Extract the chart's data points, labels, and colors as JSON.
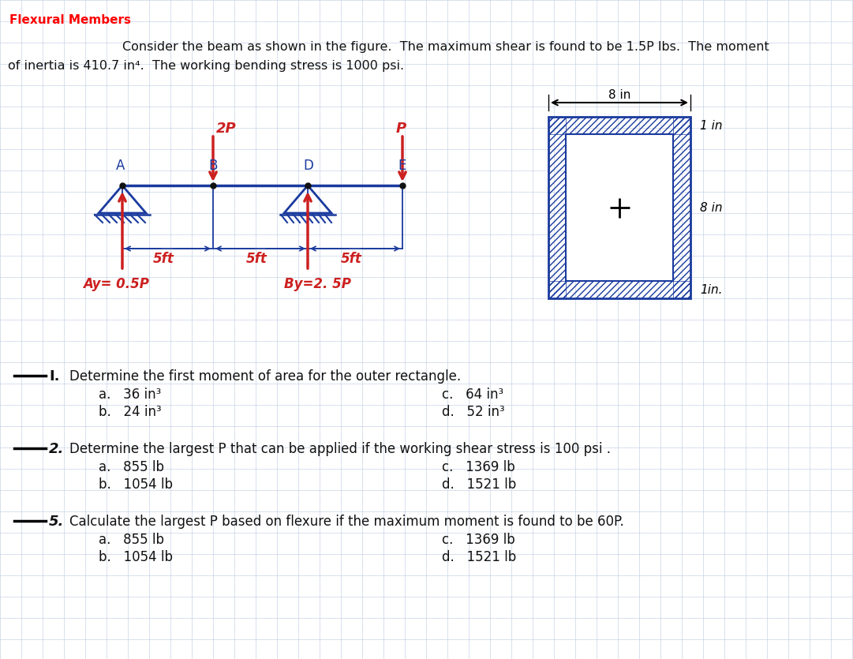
{
  "title": "Flexural Members",
  "title_color": "#ff0000",
  "bg_color": "#ffffff",
  "desc_line1": "Consider the beam as shown in the figure.  The maximum shear is found to be 1.5P lbs.  The moment",
  "desc_line2": "of inertia is 410.7 in⁴.  The working bending stress is 1000 psi.",
  "q1_text": "Determine the first moment of area for the outer rectangle.",
  "q1_a": "a.   36 in³",
  "q1_b": "b.   24 in³",
  "q1_c": "c.   64 in³",
  "q1_d": "d.   52 in³",
  "q2_text": "Determine the largest P that can be applied if the working shear stress is 100 psi .",
  "q2_a": "a.   855 lb",
  "q2_b": "b.   1054 lb",
  "q2_c": "c.   1369 lb",
  "q2_d": "d.   1521 lb",
  "q3_text": "Calculate the largest P based on flexure if the maximum moment is found to be 60P.",
  "q3_a": "a.   855 lb",
  "q3_b": "b.   1054 lb",
  "q3_c": "c.   1369 lb",
  "q3_d": "d.   1521 lb",
  "grid_color": "#c8d4e8",
  "beam_color": "#1a3a9e",
  "load_color": "#cc2020",
  "text_color": "#111111"
}
